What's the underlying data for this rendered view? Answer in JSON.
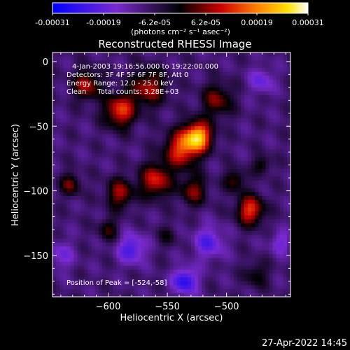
{
  "colorbar": {
    "ticks": [
      "-0.00031",
      "-0.00019",
      "-6.2e-05",
      "6.2e-05",
      "0.00019",
      "0.00031"
    ],
    "units": "(photons cm⁻² s⁻¹ asec⁻²)"
  },
  "chart_data": {
    "type": "heatmap",
    "title": "Reconstructed RHESSI Image",
    "xlabel": "Heliocentric X (arcsec)",
    "ylabel": "Heliocentric Y (arcsec)",
    "xlim": [
      -647,
      -446
    ],
    "ylim": [
      -182,
      7
    ],
    "xticks": [
      -600,
      -550,
      -500
    ],
    "xtick_labels": [
      "−600",
      "−550",
      "−500"
    ],
    "yticks": [
      0,
      -50,
      -100,
      -150
    ],
    "ytick_labels": [
      "0",
      "−50",
      "−100",
      "−150"
    ],
    "value_range": [
      -0.00031,
      0.00031
    ],
    "colormap": "blue-purple-black-red-orange-yellow-white",
    "annotations": [
      "4-Jan-2003 19:16:56.000 to 19:22:00.000",
      "Detectors: 3F 4F 5F 6F 7F 8F, Att 0",
      "Energy Range: 12.0 - 25.0 keV",
      "Clean     Total counts: 3.28E+03",
      "Position of Peak = [-524,-58]"
    ],
    "peak": [
      -524,
      -58
    ],
    "peak_value": 0.00031,
    "sources": [
      {
        "x": -524,
        "y": -58,
        "amp": 0.00031,
        "sigma": 8
      },
      {
        "x": -538,
        "y": -68,
        "amp": 0.00022,
        "sigma": 10
      },
      {
        "x": -590,
        "y": -38,
        "amp": 0.00022,
        "sigma": 9
      },
      {
        "x": -618,
        "y": -18,
        "amp": 0.00017,
        "sigma": 8
      },
      {
        "x": -566,
        "y": -20,
        "amp": 0.00017,
        "sigma": 10
      },
      {
        "x": -508,
        "y": -30,
        "amp": 0.00014,
        "sigma": 9
      },
      {
        "x": -560,
        "y": -92,
        "amp": 0.0002,
        "sigma": 9
      },
      {
        "x": -590,
        "y": -102,
        "amp": 0.00016,
        "sigma": 8
      },
      {
        "x": -528,
        "y": -100,
        "amp": 0.00014,
        "sigma": 8
      },
      {
        "x": -480,
        "y": -115,
        "amp": 0.00022,
        "sigma": 8
      },
      {
        "x": -493,
        "y": -92,
        "amp": 0.00012,
        "sigma": 6
      },
      {
        "x": -470,
        "y": -80,
        "amp": 0.0001,
        "sigma": 5
      },
      {
        "x": -632,
        "y": -95,
        "amp": 0.00013,
        "sigma": 6
      },
      {
        "x": -600,
        "y": -130,
        "amp": 0.0001,
        "sigma": 6
      },
      {
        "x": -475,
        "y": -165,
        "amp": 9e-05,
        "sigma": 7
      },
      {
        "x": -550,
        "y": -135,
        "amp": 6e-05,
        "sigma": 6
      },
      {
        "x": -515,
        "y": -140,
        "amp": -0.00012,
        "sigma": 9
      },
      {
        "x": -580,
        "y": -145,
        "amp": -0.00014,
        "sigma": 8
      },
      {
        "x": -535,
        "y": -170,
        "amp": -0.00018,
        "sigma": 7
      },
      {
        "x": -470,
        "y": -15,
        "amp": -0.0001,
        "sigma": 7
      },
      {
        "x": -640,
        "y": -150,
        "amp": -8e-05,
        "sigma": 8
      },
      {
        "x": -455,
        "y": -140,
        "amp": -9e-05,
        "sigma": 6
      }
    ]
  },
  "timestamp": "27-Apr-2022 14:45"
}
